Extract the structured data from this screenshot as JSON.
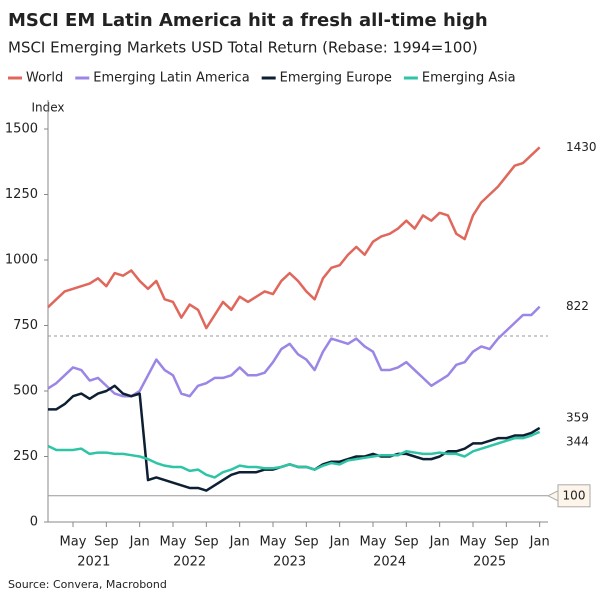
{
  "chart_data": {
    "type": "line",
    "title": "MSCI EM Latin America hit a fresh all-time high",
    "subtitle": "MSCI Emerging Markets USD Total Return (Rebase: 1994=100)",
    "y_label": "Index",
    "source": "Source: Convera, Macrobond",
    "x": [
      "2021-02",
      "2021-03",
      "2021-04",
      "2021-05",
      "2021-06",
      "2021-07",
      "2021-08",
      "2021-09",
      "2021-10",
      "2021-11",
      "2021-12",
      "2022-01",
      "2022-02",
      "2022-03",
      "2022-04",
      "2022-05",
      "2022-06",
      "2022-07",
      "2022-08",
      "2022-09",
      "2022-10",
      "2022-11",
      "2022-12",
      "2023-01",
      "2023-02",
      "2023-03",
      "2023-04",
      "2023-05",
      "2023-06",
      "2023-07",
      "2023-08",
      "2023-09",
      "2023-10",
      "2023-11",
      "2023-12",
      "2024-01",
      "2024-02",
      "2024-03",
      "2024-04",
      "2024-05",
      "2024-06",
      "2024-07",
      "2024-08",
      "2024-09",
      "2024-10",
      "2024-11",
      "2024-12",
      "2025-01",
      "2025-02",
      "2025-03",
      "2025-04",
      "2025-05",
      "2025-06",
      "2025-07",
      "2025-08",
      "2025-09",
      "2025-10",
      "2025-11",
      "2025-12",
      "2026-01"
    ],
    "xlim": [
      "2021-02",
      "2026-02"
    ],
    "xticks": [
      {
        "value": "2021-05",
        "label": "May"
      },
      {
        "value": "2021-09",
        "label": "Sep"
      },
      {
        "value": "2022-01",
        "label": "Jan"
      },
      {
        "value": "2022-05",
        "label": "May"
      },
      {
        "value": "2022-09",
        "label": "Sep"
      },
      {
        "value": "2023-01",
        "label": "Jan"
      },
      {
        "value": "2023-05",
        "label": "May"
      },
      {
        "value": "2023-09",
        "label": "Sep"
      },
      {
        "value": "2024-01",
        "label": "Jan"
      },
      {
        "value": "2024-05",
        "label": "May"
      },
      {
        "value": "2024-09",
        "label": "Sep"
      },
      {
        "value": "2025-01",
        "label": "Jan"
      },
      {
        "value": "2025-05",
        "label": "May"
      },
      {
        "value": "2025-09",
        "label": "Sep"
      },
      {
        "value": "2026-01",
        "label": "Jan"
      }
    ],
    "x_year_labels": [
      "2021",
      "2022",
      "2023",
      "2024",
      "2025"
    ],
    "ylim": [
      0,
      1500
    ],
    "yticks": [
      0,
      250,
      500,
      750,
      1000,
      1250,
      1500
    ],
    "grid": false,
    "legend": "top-left",
    "reference_lines": [
      {
        "value": 710,
        "style": "dashed"
      },
      {
        "value": 100,
        "style": "solid"
      }
    ],
    "series": [
      {
        "name": "World",
        "color": "#e0675b",
        "values": [
          820,
          850,
          880,
          890,
          900,
          910,
          930,
          900,
          950,
          940,
          960,
          920,
          890,
          920,
          850,
          840,
          780,
          830,
          810,
          740,
          790,
          840,
          810,
          860,
          840,
          860,
          880,
          870,
          920,
          950,
          920,
          880,
          850,
          930,
          970,
          980,
          1020,
          1050,
          1020,
          1070,
          1090,
          1100,
          1120,
          1150,
          1120,
          1170,
          1150,
          1180,
          1170,
          1100,
          1080,
          1170,
          1220,
          1250,
          1280,
          1320,
          1360,
          1370,
          1400,
          1430
        ]
      },
      {
        "name": "Emerging Latin America",
        "color": "#9b85e6",
        "values": [
          510,
          530,
          560,
          590,
          580,
          540,
          550,
          520,
          490,
          480,
          480,
          500,
          560,
          620,
          580,
          560,
          490,
          480,
          520,
          530,
          550,
          550,
          560,
          590,
          560,
          560,
          570,
          610,
          660,
          680,
          640,
          620,
          580,
          650,
          700,
          690,
          680,
          700,
          670,
          650,
          580,
          580,
          590,
          610,
          580,
          550,
          520,
          540,
          560,
          600,
          610,
          650,
          670,
          660,
          700,
          730,
          760,
          790,
          790,
          822
        ]
      },
      {
        "name": "Emerging Europe",
        "color": "#0d1f33",
        "values": [
          430,
          430,
          450,
          480,
          490,
          470,
          490,
          500,
          520,
          490,
          480,
          490,
          160,
          170,
          160,
          150,
          140,
          130,
          130,
          120,
          140,
          160,
          180,
          190,
          190,
          190,
          200,
          200,
          210,
          220,
          210,
          210,
          200,
          220,
          230,
          230,
          240,
          250,
          250,
          260,
          250,
          250,
          260,
          260,
          250,
          240,
          240,
          250,
          270,
          270,
          280,
          300,
          300,
          310,
          320,
          320,
          330,
          330,
          340,
          359
        ]
      },
      {
        "name": "Emerging Asia",
        "color": "#2ec4a5",
        "values": [
          290,
          275,
          275,
          275,
          280,
          260,
          265,
          265,
          260,
          260,
          255,
          250,
          240,
          225,
          215,
          210,
          210,
          195,
          200,
          180,
          170,
          190,
          200,
          215,
          210,
          210,
          205,
          205,
          210,
          220,
          210,
          210,
          200,
          215,
          225,
          220,
          235,
          240,
          245,
          250,
          255,
          255,
          255,
          270,
          265,
          260,
          260,
          265,
          260,
          260,
          250,
          270,
          280,
          290,
          300,
          310,
          320,
          320,
          330,
          344
        ]
      }
    ]
  }
}
